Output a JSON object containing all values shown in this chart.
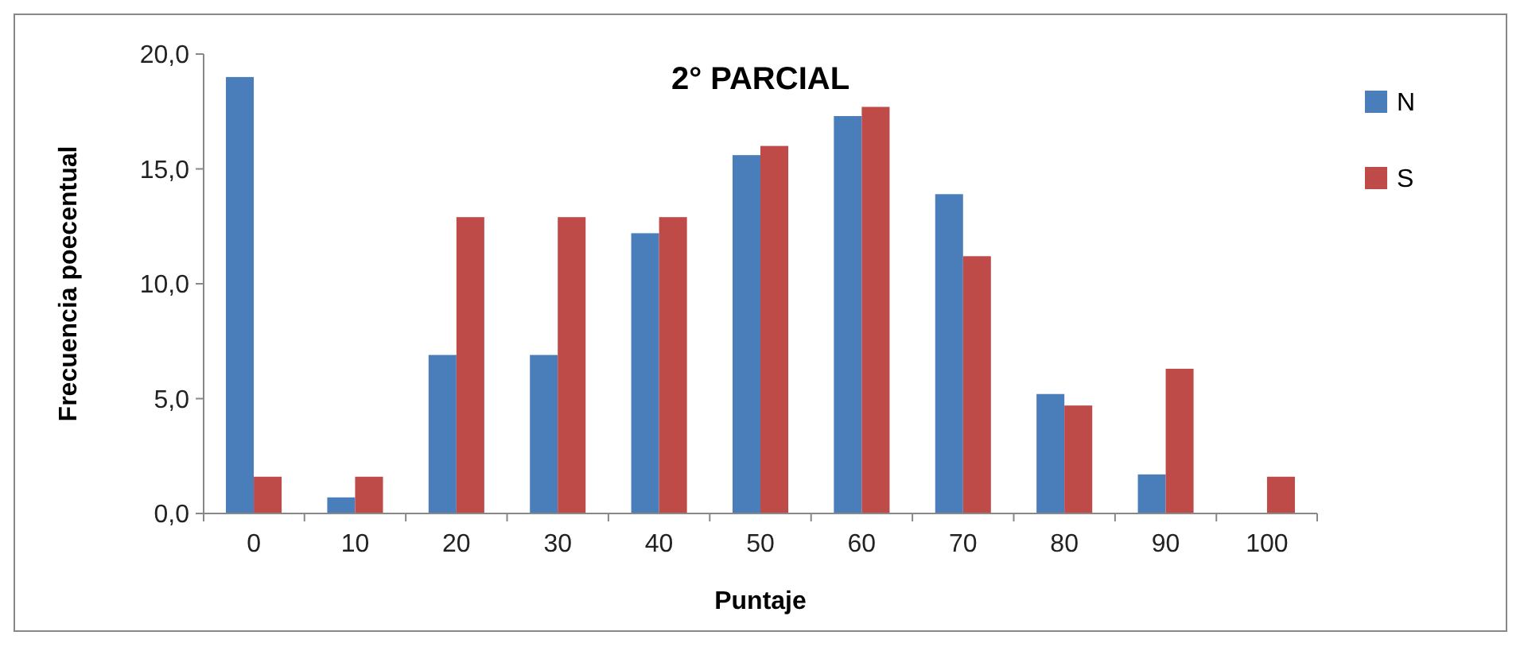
{
  "chart_data": {
    "type": "bar",
    "title": "2° PARCIAL",
    "xlabel": "Puntaje",
    "ylabel": "Frecuencia poecentual",
    "categories": [
      "0",
      "10",
      "20",
      "30",
      "40",
      "50",
      "60",
      "70",
      "80",
      "90",
      "100"
    ],
    "series": [
      {
        "name": "N",
        "color": "#4a7ebb",
        "values": [
          19.0,
          0.7,
          6.9,
          6.9,
          12.2,
          15.6,
          17.3,
          13.9,
          5.2,
          1.7,
          0
        ]
      },
      {
        "name": "S",
        "color": "#be4b48",
        "values": [
          1.6,
          1.6,
          12.9,
          12.9,
          12.9,
          16.0,
          17.7,
          11.2,
          4.7,
          6.3,
          1.6
        ]
      }
    ],
    "ylim": [
      0,
      20
    ],
    "yticks": [
      {
        "value": 0,
        "label": "0,0"
      },
      {
        "value": 5,
        "label": "5,0"
      },
      {
        "value": 10,
        "label": "10,0"
      },
      {
        "value": 15,
        "label": "15,0"
      },
      {
        "value": 20,
        "label": "20,0"
      }
    ],
    "grid": false,
    "legend": "top right"
  }
}
